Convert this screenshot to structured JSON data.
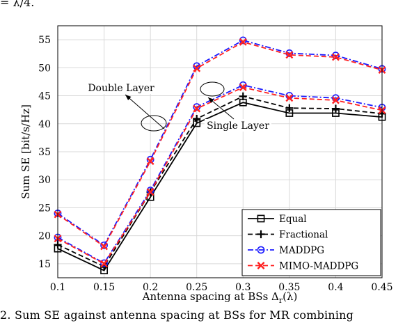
{
  "fragments": {
    "top": "= λ/4.",
    "bottom": "2.   Sum SE against antenna spacing at BSs for MR combining"
  },
  "chart_data": {
    "type": "line",
    "xlabel": "Antenna spacing at BSs Δ",
    "xlabel_sub": "r",
    "xlabel_tail": "(λ)",
    "ylabel": "Sum SE [bit/s/Hz]",
    "x": [
      0.1,
      0.15,
      0.2,
      0.25,
      0.3,
      0.35,
      0.4,
      0.45
    ],
    "x_ticks": [
      "0.1",
      "0.15",
      "0.2",
      "0.25",
      "0.3",
      "0.35",
      "0.4",
      "0.45"
    ],
    "xlim": [
      0.1,
      0.45
    ],
    "ylim": [
      12.5,
      57.5
    ],
    "y_ticks": [
      15,
      20,
      25,
      30,
      35,
      40,
      45,
      50,
      55
    ],
    "grid": true,
    "legend_position": "bottom-right",
    "series": [
      {
        "name": "Equal",
        "color": "#000000",
        "dash": "solid",
        "marker": "square",
        "group": "single",
        "values": [
          17.7,
          13.8,
          26.9,
          40.1,
          43.8,
          41.9,
          41.9,
          41.2
        ]
      },
      {
        "name": "Fractional",
        "color": "#000000",
        "dash": "dashed",
        "marker": "plus",
        "group": "single",
        "values": [
          18.4,
          14.5,
          27.8,
          40.9,
          44.9,
          42.8,
          42.7,
          41.8
        ]
      },
      {
        "name": "MADDPG",
        "color": "#1a1aff",
        "dash": "dashdot",
        "marker": "circle",
        "group": "single",
        "values": [
          19.7,
          15.1,
          28.1,
          43.0,
          46.9,
          45.0,
          44.6,
          42.9
        ]
      },
      {
        "name": "MIMO-MADDPG",
        "color": "#ff2020",
        "dash": "dashed",
        "marker": "x",
        "group": "single",
        "values": [
          19.5,
          15.0,
          27.8,
          42.7,
          46.5,
          44.6,
          44.2,
          42.4
        ]
      },
      {
        "name": "MADDPG",
        "color": "#1a1aff",
        "dash": "dashdot",
        "marker": "circle",
        "group": "double",
        "values": [
          24.0,
          18.3,
          33.6,
          50.3,
          54.9,
          52.6,
          52.2,
          49.8
        ]
      },
      {
        "name": "MIMO-MADDPG",
        "color": "#ff2020",
        "dash": "dashed",
        "marker": "x",
        "group": "double",
        "values": [
          23.8,
          18.1,
          33.3,
          49.9,
          54.6,
          52.3,
          51.9,
          49.6
        ]
      }
    ],
    "legend": [
      "Equal",
      "Fractional",
      "MADDPG",
      "MIMO-MADDPG"
    ],
    "annotations": {
      "double_layer": "Double Layer",
      "single_layer": "Single Layer"
    }
  }
}
